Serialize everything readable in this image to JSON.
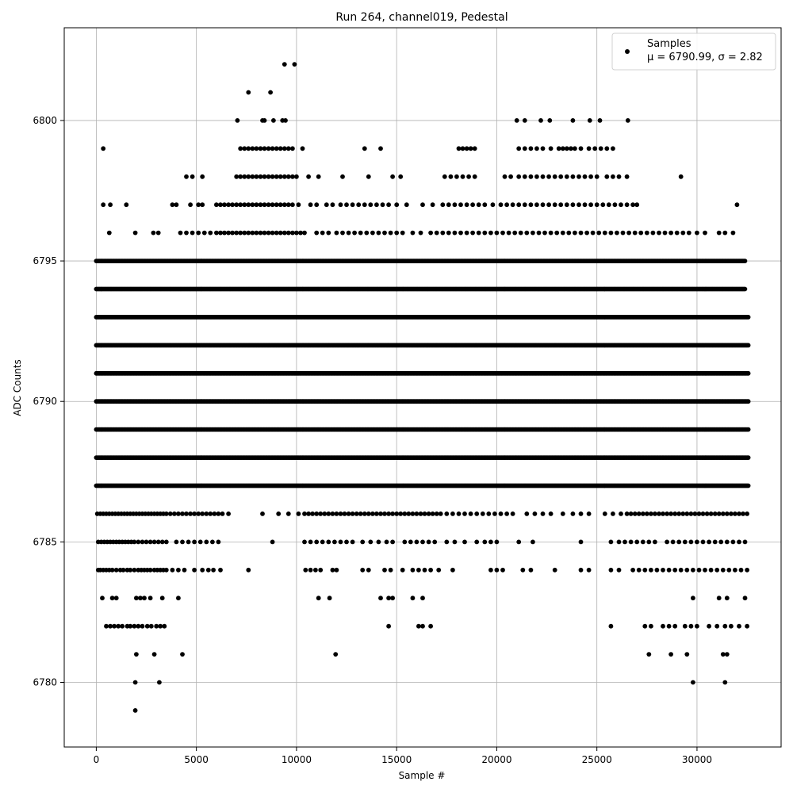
{
  "chart_data": {
    "type": "scatter",
    "title": "Run 264, channel019, Pedestal",
    "xlabel": "Sample #",
    "ylabel": "ADC Counts",
    "xlim": [
      -1600,
      34200
    ],
    "ylim": [
      6777.7,
      6803.3
    ],
    "xticks": [
      0,
      5000,
      10000,
      15000,
      20000,
      25000,
      30000
    ],
    "yticks": [
      6780,
      6785,
      6790,
      6795,
      6800
    ],
    "grid": true,
    "legend_placement": "upper-right",
    "series": [
      {
        "name": "Samples",
        "legend_stats": "μ = 6790.99, σ = 2.82",
        "color": "#000000",
        "marker": "circle",
        "x_range": [
          0,
          32600
        ],
        "sample_count": 32768,
        "levels": [
          {
            "y": 6779,
            "x": [
              1950
            ]
          },
          {
            "y": 6780,
            "x": [
              1950,
              3150,
              29800,
              31400
            ]
          },
          {
            "y": 6781,
            "x": [
              2000,
              2900,
              4300,
              11950,
              27600,
              28700,
              29500,
              31300,
              31500
            ]
          },
          {
            "y": 6782,
            "x": [
              500,
              700,
              900,
              1100,
              1300,
              1550,
              1700,
              1900,
              2100,
              2300,
              2550,
              2750,
              3000,
              3200,
              3400,
              14600,
              16100,
              16300,
              16700,
              25700,
              27400,
              27700,
              28300,
              28600,
              28900,
              29400,
              29700,
              30000,
              30600,
              31000,
              31400,
              31700,
              32100,
              32500
            ]
          },
          {
            "y": 6783,
            "x": [
              300,
              800,
              1000,
              2000,
              2200,
              2400,
              2700,
              3300,
              4100,
              11100,
              11650,
              14200,
              14600,
              14800,
              15800,
              16300,
              29800,
              31100,
              31500,
              32400
            ]
          },
          {
            "y": 6784,
            "x": [
              100,
              200,
              350,
              500,
              650,
              800,
              1000,
              1200,
              1350,
              1550,
              1700,
              1900,
              2100,
              2250,
              2400,
              2550,
              2700,
              2900,
              3050,
              3200,
              3350,
              3500,
              3800,
              4100,
              4400,
              4900,
              5300,
              5600,
              5850,
              6200,
              7600,
              10450,
              10700,
              10950,
              11200,
              11800,
              12000,
              13300,
              13600,
              14400,
              14700,
              15300,
              15800,
              16100,
              16400,
              16700,
              17100,
              17800,
              19700,
              20000,
              20300,
              21300,
              21700,
              22900,
              24200,
              24600,
              25700,
              26100,
              26800,
              27100,
              27400,
              27700,
              28000,
              28300,
              28600,
              28900,
              29200,
              29500,
              29800,
              30100,
              30400,
              30700,
              31000,
              31300,
              31600,
              31900,
              32200,
              32500
            ]
          },
          {
            "y": 6785,
            "x": [
              100,
              250,
              400,
              550,
              700,
              850,
              1000,
              1150,
              1300,
              1450,
              1600,
              1750,
              1900,
              2100,
              2300,
              2500,
              2700,
              2900,
              3100,
              3300,
              3500,
              4000,
              4300,
              4600,
              4900,
              5200,
              5500,
              5800,
              6100,
              8800,
              10400,
              10700,
              11000,
              11300,
              11600,
              11900,
              12200,
              12500,
              12800,
              13300,
              13700,
              14100,
              14500,
              14800,
              15400,
              15700,
              16000,
              16300,
              16600,
              16900,
              17500,
              17900,
              18400,
              19000,
              19400,
              19700,
              20000,
              21100,
              21800,
              24200,
              25700,
              26100,
              26400,
              26700,
              27000,
              27300,
              27600,
              27900,
              28500,
              28800,
              29100,
              29400,
              29700,
              30000,
              30300,
              30600,
              30900,
              31200,
              31500,
              31800,
              32100,
              32400
            ]
          },
          {
            "y": 6786,
            "x": [
              50,
              200,
              350,
              500,
              650,
              800,
              950,
              1100,
              1250,
              1400,
              1550,
              1700,
              1850,
              2000,
              2150,
              2300,
              2450,
              2600,
              2750,
              2900,
              3050,
              3200,
              3350,
              3500,
              3700,
              3900,
              4100,
              4300,
              4500,
              4700,
              4900,
              5100,
              5300,
              5500,
              5700,
              5900,
              6100,
              6300,
              6600,
              8300,
              9100,
              9600,
              10100,
              10400,
              10600,
              10800,
              11000,
              11200,
              11400,
              11600,
              11800,
              12000,
              12200,
              12400,
              12600,
              12800,
              13000,
              13200,
              13400,
              13600,
              13800,
              14000,
              14200,
              14400,
              14600,
              14800,
              15000,
              15200,
              15400,
              15600,
              15800,
              16000,
              16200,
              16400,
              16600,
              16800,
              17000,
              17200,
              17500,
              17800,
              18100,
              18400,
              18700,
              19000,
              19300,
              19600,
              19900,
              20200,
              20500,
              20800,
              21500,
              21900,
              22300,
              22700,
              23300,
              23800,
              24200,
              24600,
              25400,
              25800,
              26200,
              26500,
              26700,
              26900,
              27100,
              27300,
              27500,
              27700,
              27900,
              28100,
              28300,
              28500,
              28700,
              28900,
              29100,
              29300,
              29500,
              29700,
              29900,
              30100,
              30300,
              30500,
              30700,
              30900,
              31100,
              31300,
              31500,
              31700,
              31900,
              32100,
              32300,
              32500
            ]
          },
          {
            "y": 6787,
            "x": [
              0,
              32600
            ]
          },
          {
            "y": 6788,
            "x": [
              0,
              32600
            ]
          },
          {
            "y": 6789,
            "x": [
              0,
              32600
            ]
          },
          {
            "y": 6790,
            "x": [
              0,
              32600
            ]
          },
          {
            "y": 6791,
            "x": [
              0,
              32600
            ]
          },
          {
            "y": 6792,
            "x": [
              0,
              32600
            ]
          },
          {
            "y": 6793,
            "x": [
              0,
              32600
            ]
          },
          {
            "y": 6794,
            "x": [
              0,
              32400
            ]
          },
          {
            "y": 6795,
            "x": [
              0,
              32400
            ]
          },
          {
            "y": 6796,
            "x": [
              650,
              1950,
              2850,
              3100,
              4200,
              4500,
              4800,
              5100,
              5400,
              5700,
              6000,
              6200,
              6400,
              6600,
              6800,
              7000,
              7200,
              7400,
              7600,
              7800,
              8000,
              8200,
              8400,
              8600,
              8800,
              9000,
              9200,
              9400,
              9600,
              9800,
              10000,
              10200,
              10400,
              11000,
              11300,
              11600,
              12000,
              12300,
              12600,
              12900,
              13200,
              13500,
              13800,
              14100,
              14400,
              14700,
              15000,
              15300,
              15800,
              16200,
              16700,
              17000,
              17300,
              17600,
              17900,
              18200,
              18500,
              18800,
              19100,
              19400,
              19700,
              20000,
              20300,
              20600,
              20900,
              21200,
              21500,
              21800,
              22100,
              22400,
              22700,
              23000,
              23300,
              23600,
              23900,
              24200,
              24500,
              24800,
              25100,
              25400,
              25700,
              26000,
              26300,
              26600,
              26900,
              27200,
              27500,
              27800,
              28100,
              28400,
              28700,
              29000,
              29300,
              29600,
              30000,
              30400,
              31100,
              31400,
              31800
            ]
          },
          {
            "y": 6797,
            "x": [
              350,
              700,
              1500,
              3800,
              4000,
              4700,
              5100,
              5300,
              6000,
              6200,
              6400,
              6600,
              6800,
              7000,
              7200,
              7400,
              7600,
              7800,
              8000,
              8200,
              8400,
              8600,
              8800,
              9000,
              9200,
              9400,
              9600,
              9800,
              10100,
              10700,
              11000,
              11500,
              11800,
              12200,
              12500,
              12800,
              13100,
              13400,
              13700,
              14000,
              14300,
              14600,
              15000,
              15500,
              16300,
              16800,
              17300,
              17600,
              17900,
              18200,
              18500,
              18800,
              19100,
              19400,
              19800,
              20200,
              20500,
              20800,
              21100,
              21400,
              21700,
              22000,
              22300,
              22600,
              22900,
              23200,
              23500,
              23800,
              24100,
              24400,
              24700,
              25000,
              25300,
              25600,
              25900,
              26200,
              26500,
              26800,
              27000,
              32000
            ]
          },
          {
            "y": 6798,
            "x": [
              4500,
              4800,
              5300,
              7000,
              7200,
              7400,
              7600,
              7800,
              8000,
              8200,
              8400,
              8600,
              8800,
              9000,
              9200,
              9400,
              9600,
              9800,
              10000,
              10600,
              11100,
              12300,
              13600,
              14800,
              15200,
              17400,
              17700,
              18000,
              18300,
              18600,
              18900,
              20400,
              20700,
              21100,
              21400,
              21700,
              22000,
              22300,
              22600,
              22900,
              23200,
              23500,
              23800,
              24100,
              24400,
              24700,
              25000,
              25500,
              25800,
              26100,
              26500,
              29200
            ]
          },
          {
            "y": 6799,
            "x": [
              350,
              7200,
              7400,
              7600,
              7800,
              8000,
              8200,
              8400,
              8600,
              8800,
              9000,
              9200,
              9400,
              9600,
              9800,
              10300,
              13400,
              14200,
              18100,
              18300,
              18500,
              18700,
              18900,
              21100,
              21400,
              21700,
              22000,
              22300,
              22700,
              23100,
              23300,
              23500,
              23700,
              23900,
              24200,
              24600,
              24900,
              25200,
              25500,
              25800
            ]
          },
          {
            "y": 6800,
            "x": [
              7050,
              8300,
              8400,
              8850,
              9300,
              9450,
              21000,
              21400,
              22200,
              22650,
              23800,
              24650,
              25150,
              26550
            ]
          },
          {
            "y": 6801,
            "x": [
              7600,
              8700
            ]
          },
          {
            "y": 6802,
            "x": [
              9400,
              9900
            ]
          }
        ]
      }
    ]
  }
}
